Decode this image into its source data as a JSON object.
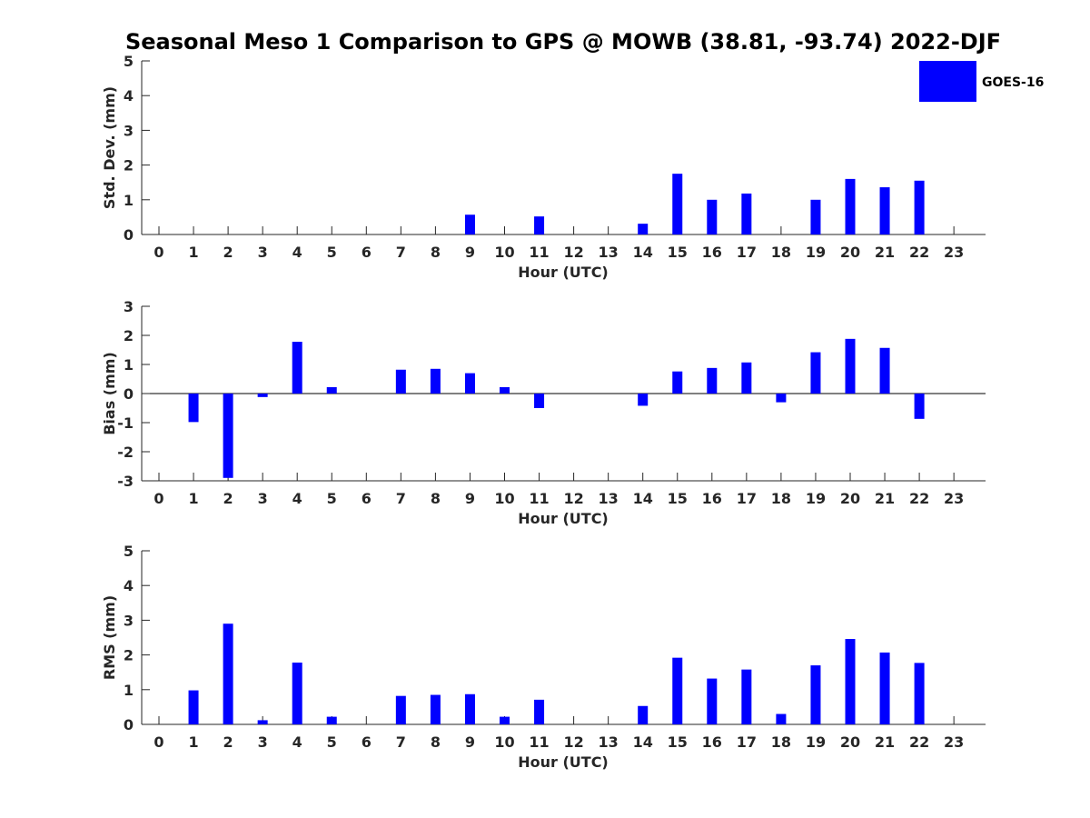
{
  "title": "Seasonal Meso 1 Comparison to GPS @ MOWB (38.81, -93.74) 2022-DJF",
  "legend": {
    "label": "GOES-16",
    "color": "#0000ff"
  },
  "chart_data": [
    {
      "type": "bar",
      "name": "std-dev",
      "title": "",
      "xlabel": "Hour (UTC)",
      "ylabel": "Std. Dev. (mm)",
      "ylim": [
        0,
        5
      ],
      "yticks": [
        "0",
        "1",
        "2",
        "3",
        "4",
        "5"
      ],
      "categories": [
        "0",
        "1",
        "2",
        "3",
        "4",
        "5",
        "6",
        "7",
        "8",
        "9",
        "10",
        "11",
        "12",
        "13",
        "14",
        "15",
        "16",
        "17",
        "18",
        "19",
        "20",
        "21",
        "22",
        "23"
      ],
      "values": [
        0,
        0,
        0,
        0,
        0,
        0,
        0,
        0,
        0,
        0.57,
        0,
        0.52,
        0,
        0,
        0.31,
        1.75,
        1.0,
        1.18,
        0,
        1.0,
        1.6,
        1.36,
        1.55,
        0
      ],
      "color": "#0000ff"
    },
    {
      "type": "bar",
      "name": "bias",
      "title": "",
      "xlabel": "Hour (UTC)",
      "ylabel": "Bias (mm)",
      "ylim": [
        -3,
        3
      ],
      "yticks": [
        "-3",
        "-2",
        "-1",
        "0",
        "1",
        "2",
        "3"
      ],
      "categories": [
        "0",
        "1",
        "2",
        "3",
        "4",
        "5",
        "6",
        "7",
        "8",
        "9",
        "10",
        "11",
        "12",
        "13",
        "14",
        "15",
        "16",
        "17",
        "18",
        "19",
        "20",
        "21",
        "22",
        "23"
      ],
      "values": [
        0,
        -0.98,
        -2.9,
        -0.12,
        1.78,
        0.22,
        0,
        0.82,
        0.85,
        0.7,
        0.22,
        -0.5,
        0,
        0,
        -0.42,
        0.76,
        0.88,
        1.07,
        -0.3,
        1.42,
        1.88,
        1.57,
        -0.87,
        0
      ],
      "color": "#0000ff"
    },
    {
      "type": "bar",
      "name": "rms",
      "title": "",
      "xlabel": "Hour (UTC)",
      "ylabel": "RMS (mm)",
      "ylim": [
        0,
        5
      ],
      "yticks": [
        "0",
        "1",
        "2",
        "3",
        "4",
        "5"
      ],
      "categories": [
        "0",
        "1",
        "2",
        "3",
        "4",
        "5",
        "6",
        "7",
        "8",
        "9",
        "10",
        "11",
        "12",
        "13",
        "14",
        "15",
        "16",
        "17",
        "18",
        "19",
        "20",
        "21",
        "22",
        "23"
      ],
      "values": [
        0,
        0.98,
        2.9,
        0.12,
        1.78,
        0.22,
        0,
        0.82,
        0.85,
        0.87,
        0.22,
        0.71,
        0,
        0,
        0.53,
        1.92,
        1.32,
        1.58,
        0.3,
        1.7,
        2.46,
        2.07,
        1.77,
        0
      ],
      "color": "#0000ff"
    }
  ]
}
